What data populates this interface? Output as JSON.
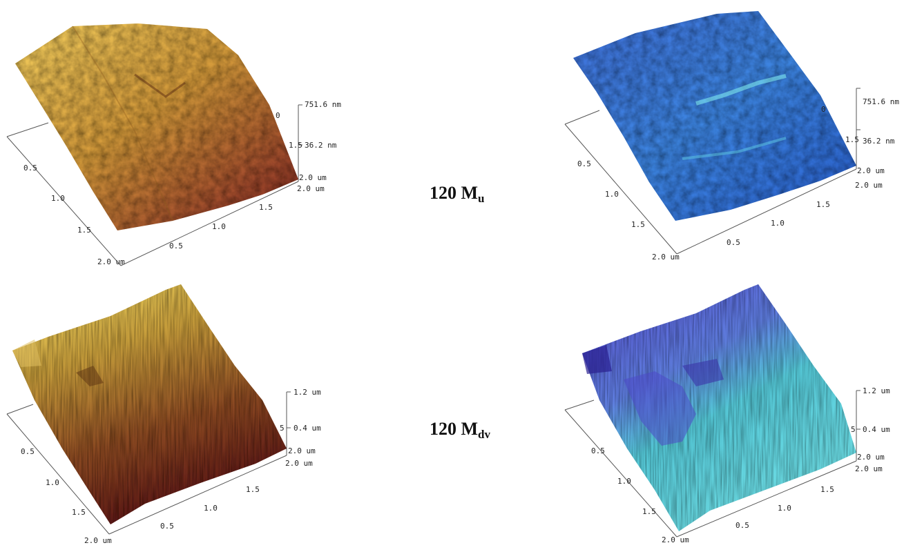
{
  "labels": {
    "top": {
      "main": "120 M",
      "sub": "u"
    },
    "bottom": {
      "main": "120 M",
      "sub": "dv"
    }
  },
  "panels": {
    "top": {
      "z_top": "751.6 nm",
      "z_mid": "36.2 nm",
      "z_base": "2.0 um",
      "x_end": "2.0 um",
      "left_ticks": [
        "0.5",
        "1.0",
        "1.5",
        "2.0 um"
      ],
      "bottom_ticks": [
        "0.5",
        "1.0",
        "1.5"
      ],
      "clipped_left": "0",
      "clipped_mid": "1.5"
    },
    "bottom": {
      "z_top": "1.2 um",
      "z_mid": "0.4 um",
      "z_base": "2.0 um",
      "x_end": "2.0 um",
      "left_ticks": [
        "0.5",
        "1.0",
        "1.5",
        "2.0 um"
      ],
      "bottom_ticks": [
        "0.5",
        "1.0",
        "1.5"
      ],
      "clipped_mid": "5"
    }
  },
  "colors": {
    "gold_light": "#f0c95a",
    "gold_mid": "#c58a2c",
    "gold_dark": "#7a1f1a",
    "blue_light": "#7fe3f0",
    "blue_mid": "#3a6fd6",
    "blue_dark": "#2b2a9a"
  }
}
